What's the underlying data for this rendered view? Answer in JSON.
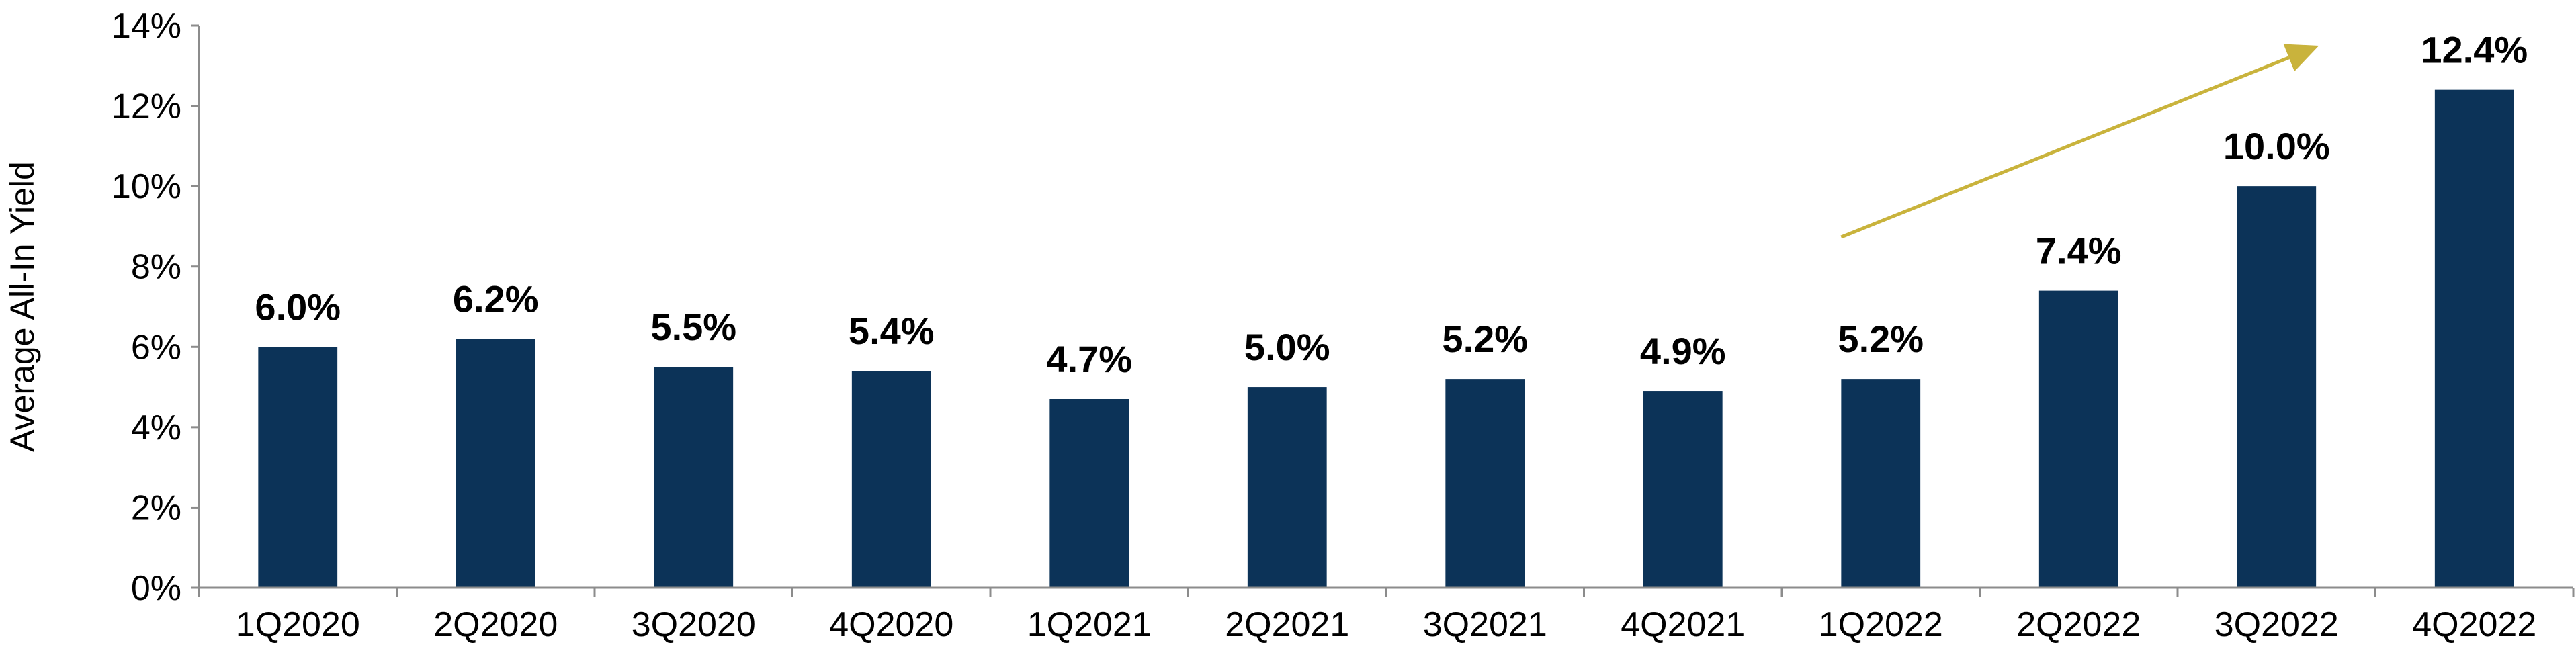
{
  "chart_data": {
    "type": "bar",
    "categories": [
      "1Q2020",
      "2Q2020",
      "3Q2020",
      "4Q2020",
      "1Q2021",
      "2Q2021",
      "3Q2021",
      "4Q2021",
      "1Q2022",
      "2Q2022",
      "3Q2022",
      "4Q2022"
    ],
    "values": [
      6.0,
      6.2,
      5.5,
      5.4,
      4.7,
      5.0,
      5.2,
      4.9,
      5.2,
      7.4,
      10.0,
      12.4
    ],
    "data_labels": [
      "6.0%",
      "6.2%",
      "5.5%",
      "5.4%",
      "4.7%",
      "5.0%",
      "5.2%",
      "4.9%",
      "5.2%",
      "7.4%",
      "10.0%",
      "12.4%"
    ],
    "title": "",
    "xlabel": "",
    "ylabel": "Average All-In Yield",
    "ylim": [
      0,
      14
    ],
    "yticks": [
      0,
      2,
      4,
      6,
      8,
      10,
      12,
      14
    ],
    "ytick_labels": [
      "0%",
      "2%",
      "4%",
      "6%",
      "8%",
      "10%",
      "12%",
      "14%"
    ],
    "grid": false,
    "legend": "none",
    "annotation": "upward trend arrow from 1Q2022 to 4Q2022",
    "colors": {
      "bar": "#0c3358",
      "arrow": "#c9b33c",
      "axis": "#8c8c8c",
      "text": "#000000"
    }
  }
}
